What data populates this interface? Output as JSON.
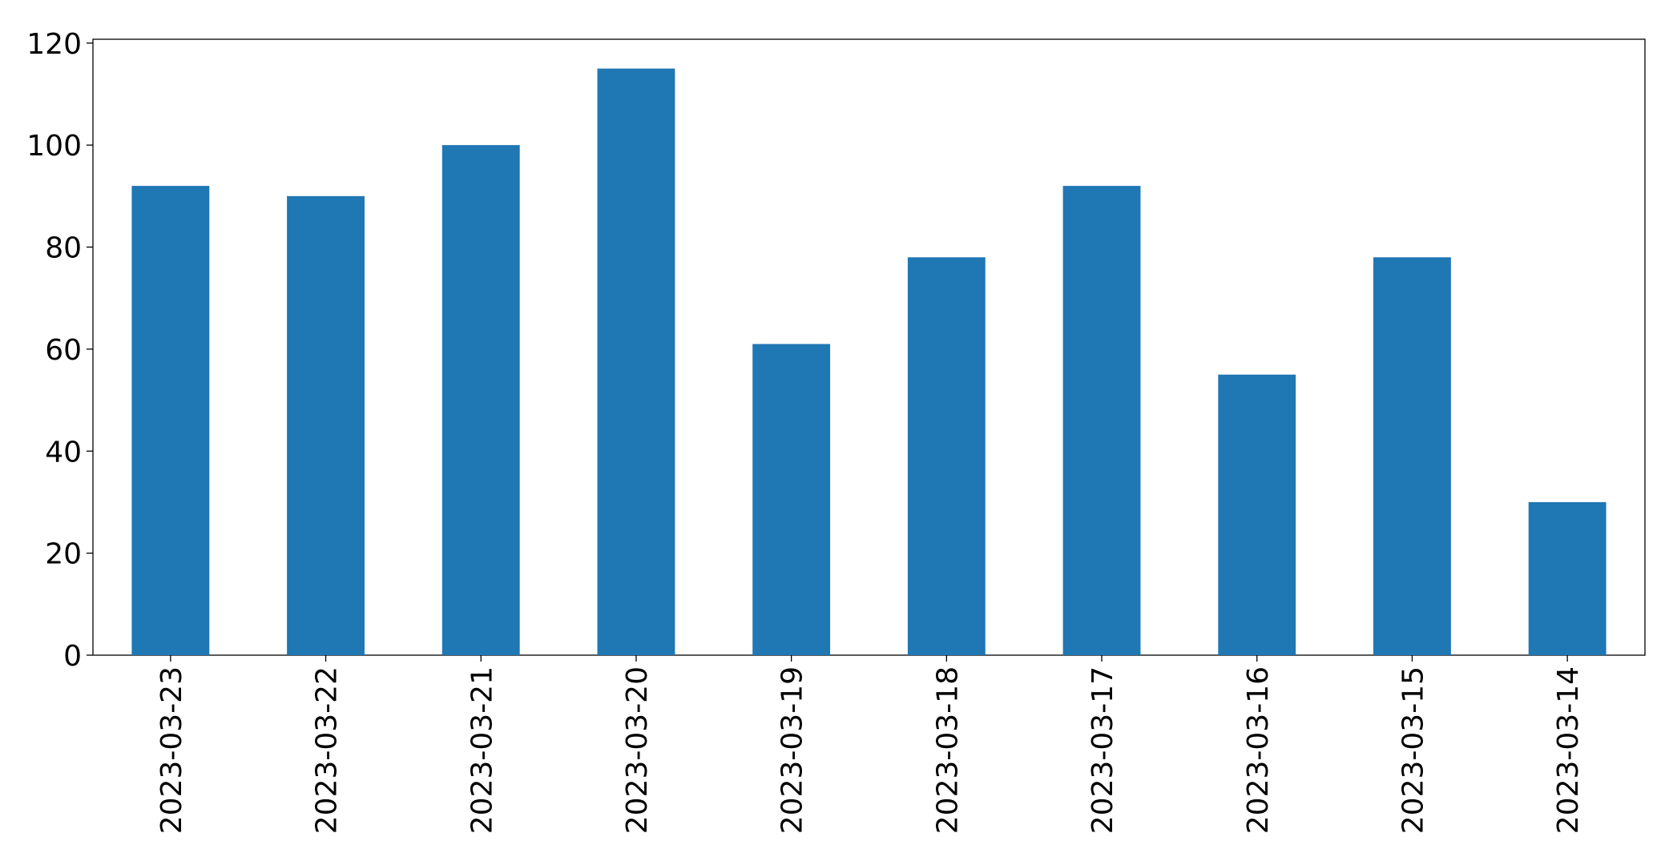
{
  "chart_data": {
    "type": "bar",
    "categories": [
      "2023-03-23",
      "2023-03-22",
      "2023-03-21",
      "2023-03-20",
      "2023-03-19",
      "2023-03-18",
      "2023-03-17",
      "2023-03-16",
      "2023-03-15",
      "2023-03-14"
    ],
    "values": [
      92,
      90,
      100,
      115,
      61,
      78,
      92,
      55,
      78,
      30
    ],
    "color": "#1f77b4",
    "ylim": [
      0,
      120.75
    ],
    "yticks": [
      0,
      20,
      40,
      60,
      80,
      100,
      120
    ],
    "grid": false
  }
}
